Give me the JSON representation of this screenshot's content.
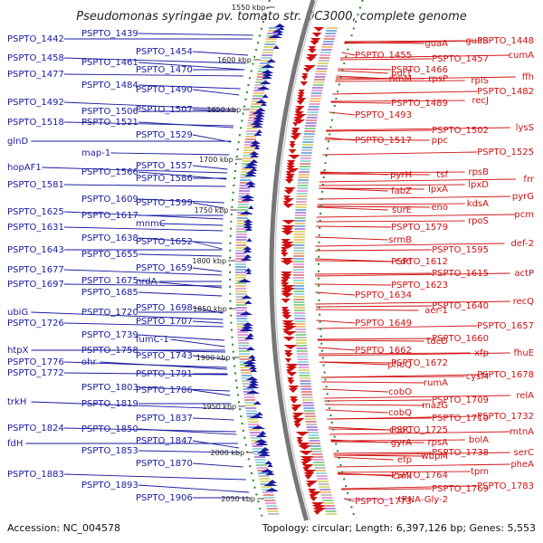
{
  "title": "Pseudomonas syringae pv. tomato str. DC3000, complete genome",
  "footer": {
    "accession": "Accession: NC_004578",
    "summary": "Topology: circular; Length: 6,397,126 bp; Genes: 5,553"
  },
  "colors": {
    "forward": "#1a1aa0",
    "reverse": "#d01010",
    "rna": "#e060c0",
    "backbone": "#777777",
    "ticks": "#228822"
  },
  "kbp_ticks": [
    "1550 kbp",
    "1600 kbp",
    "1650 kbp",
    "1700 kbp",
    "1750 kbp",
    "1800 kbp",
    "1850 kbp",
    "1900 kbp",
    "1950 kbp",
    "2000 kbp",
    "2050 kbp"
  ],
  "left_labels": [
    {
      "label": "PSPTO_1442",
      "row": 46
    },
    {
      "label": "PSPTO_1439",
      "row": 40
    },
    {
      "label": "PSPTO_1454",
      "row": 60
    },
    {
      "label": "PSPTO_1458",
      "row": 67
    },
    {
      "label": "PSPTO_1461",
      "row": 72
    },
    {
      "label": "PSPTO_1470",
      "row": 80
    },
    {
      "label": "PSPTO_1477",
      "row": 85
    },
    {
      "label": "PSPTO_1484",
      "row": 97
    },
    {
      "label": "PSPTO_1490",
      "row": 102
    },
    {
      "label": "PSPTO_1492",
      "row": 116
    },
    {
      "label": "PSPTO_1506",
      "row": 126
    },
    {
      "label": "PSPTO_1507",
      "row": 124
    },
    {
      "label": "PSPTO_1518",
      "row": 138
    },
    {
      "label": "PSPTO_1521",
      "row": 138
    },
    {
      "label": "PSPTO_1529",
      "row": 152
    },
    {
      "label": "glnD",
      "row": 159
    },
    {
      "label": "map-1",
      "row": 172
    },
    {
      "label": "PSPTO_1557",
      "row": 186
    },
    {
      "label": "hopAF1",
      "row": 188
    },
    {
      "label": "PSPTO_1566",
      "row": 193
    },
    {
      "label": "PSPTO_1586",
      "row": 200
    },
    {
      "label": "PSPTO_1581",
      "row": 207
    },
    {
      "label": "PSPTO_1609",
      "row": 223
    },
    {
      "label": "PSPTO_1599",
      "row": 227
    },
    {
      "label": "PSPTO_1625",
      "row": 237
    },
    {
      "label": "PSPTO_1617",
      "row": 241
    },
    {
      "label": "mnmC",
      "row": 250
    },
    {
      "label": "PSPTO_1631",
      "row": 254
    },
    {
      "label": "PSPTO_1638",
      "row": 266
    },
    {
      "label": "PSPTO_1652",
      "row": 270
    },
    {
      "label": "PSPTO_1643",
      "row": 279
    },
    {
      "label": "PSPTO_1655",
      "row": 284
    },
    {
      "label": "PSPTO_1659",
      "row": 299
    },
    {
      "label": "PSPTO_1677",
      "row": 301
    },
    {
      "label": "PSPTO_1675",
      "row": 313
    },
    {
      "label": "nrdA",
      "row": 314
    },
    {
      "label": "PSPTO_1697",
      "row": 317
    },
    {
      "label": "PSPTO_1685",
      "row": 326
    },
    {
      "label": "PSPTO_1698",
      "row": 343
    },
    {
      "label": "ubiG",
      "row": 348
    },
    {
      "label": "PSPTO_1720",
      "row": 348
    },
    {
      "label": "PSPTO_1707",
      "row": 358
    },
    {
      "label": "PSPTO_1726",
      "row": 360
    },
    {
      "label": "PSPTO_1739",
      "row": 373
    },
    {
      "label": "fumC-1",
      "row": 378
    },
    {
      "label": "htpX",
      "row": 390
    },
    {
      "label": "PSPTO_1758",
      "row": 390
    },
    {
      "label": "PSPTO_1743",
      "row": 396
    },
    {
      "label": "PSPTO_1776",
      "row": 403
    },
    {
      "label": "ohr",
      "row": 403
    },
    {
      "label": "PSPTO_1791",
      "row": 416
    },
    {
      "label": "PSPTO_1772",
      "row": 415
    },
    {
      "label": "PSPTO_1803",
      "row": 431
    },
    {
      "label": "PSPTO_1786",
      "row": 434
    },
    {
      "label": "trkH",
      "row": 447
    },
    {
      "label": "PSPTO_1819",
      "row": 449
    },
    {
      "label": "PSPTO_1837",
      "row": 465
    },
    {
      "label": "PSPTO_1824",
      "row": 476
    },
    {
      "label": "PSPTO_1850",
      "row": 477
    },
    {
      "label": "PSPTO_1847",
      "row": 490
    },
    {
      "label": "fdH",
      "row": 493
    },
    {
      "label": "PSPTO_1853",
      "row": 501
    },
    {
      "label": "PSPTO_1870",
      "row": 515
    },
    {
      "label": "PSPTO_1883",
      "row": 527
    },
    {
      "label": "PSPTO_1893",
      "row": 539
    },
    {
      "label": "PSPTO_1906",
      "row": 553
    }
  ],
  "right_labels": [
    {
      "label": "PSPTO_1448",
      "row": 48
    },
    {
      "label": "guaB",
      "row": 48
    },
    {
      "label": "guaA",
      "row": 51
    },
    {
      "label": "PSPTO_1455",
      "row": 64
    },
    {
      "label": "cumA",
      "row": 64
    },
    {
      "label": "PSPTO_1457",
      "row": 68
    },
    {
      "label": "PSPTO_1466",
      "row": 80
    },
    {
      "label": "purT",
      "row": 84
    },
    {
      "label": "ffh",
      "row": 88
    },
    {
      "label": "rplS",
      "row": 92
    },
    {
      "label": "rpsP",
      "row": 90
    },
    {
      "label": "rimM",
      "row": 90
    },
    {
      "label": "PSPTO_1482",
      "row": 104
    },
    {
      "label": "recJ",
      "row": 114
    },
    {
      "label": "PSPTO_1489",
      "row": 117
    },
    {
      "label": "PSPTO_1493",
      "row": 130
    },
    {
      "label": "lysS",
      "row": 144
    },
    {
      "label": "PSPTO_1502",
      "row": 147
    },
    {
      "label": "ppc",
      "row": 158
    },
    {
      "label": "PSPTO_1517",
      "row": 158
    },
    {
      "label": "PSPTO_1525",
      "row": 171
    },
    {
      "label": "rpsB",
      "row": 193
    },
    {
      "label": "tsf",
      "row": 196
    },
    {
      "label": "pyrH",
      "row": 196
    },
    {
      "label": "frr",
      "row": 201
    },
    {
      "label": "lpxD",
      "row": 207
    },
    {
      "label": "lpxA",
      "row": 212
    },
    {
      "label": "fabZ",
      "row": 214
    },
    {
      "label": "pyrG",
      "row": 220
    },
    {
      "label": "kdsA",
      "row": 228
    },
    {
      "label": "eno",
      "row": 232
    },
    {
      "label": "surE",
      "row": 235
    },
    {
      "label": "pcm",
      "row": 240
    },
    {
      "label": "rpoS",
      "row": 247
    },
    {
      "label": "PSPTO_1579",
      "row": 254
    },
    {
      "label": "srmB",
      "row": 268
    },
    {
      "label": "def-2",
      "row": 272
    },
    {
      "label": "PSPTO_1595",
      "row": 279
    },
    {
      "label": "PSPTO_1612",
      "row": 292
    },
    {
      "label": "cdd",
      "row": 292
    },
    {
      "label": "actP",
      "row": 305
    },
    {
      "label": "PSPTO_1615",
      "row": 305
    },
    {
      "label": "PSPTO_1623",
      "row": 318
    },
    {
      "label": "PSPTO_1634",
      "row": 329
    },
    {
      "label": "recQ",
      "row": 336
    },
    {
      "label": "PSPTO_1640",
      "row": 341
    },
    {
      "label": "aer-1",
      "row": 346
    },
    {
      "label": "PSPTO_1649",
      "row": 360
    },
    {
      "label": "PSPTO_1657",
      "row": 363
    },
    {
      "label": "PSPTO_1660",
      "row": 377
    },
    {
      "label": "tdcD",
      "row": 380
    },
    {
      "label": "PSPTO_1662",
      "row": 390
    },
    {
      "label": "fhuE",
      "row": 393
    },
    {
      "label": "xfp",
      "row": 393
    },
    {
      "label": "PSPTO_1672",
      "row": 404
    },
    {
      "label": "phoQ",
      "row": 406
    },
    {
      "label": "PSPTO_1678",
      "row": 417
    },
    {
      "label": "cysM",
      "row": 419
    },
    {
      "label": "rumA",
      "row": 426
    },
    {
      "label": "cobO",
      "row": 436
    },
    {
      "label": "relA",
      "row": 440
    },
    {
      "label": "PSPTO_1709",
      "row": 445
    },
    {
      "label": "mazG",
      "row": 451
    },
    {
      "label": "cobQ",
      "row": 459
    },
    {
      "label": "PSPTO_1732",
      "row": 463
    },
    {
      "label": "PSPTO_1710",
      "row": 465
    },
    {
      "label": "PSPTO_1725",
      "row": 478
    },
    {
      "label": "cobC",
      "row": 478
    },
    {
      "label": "mtnA",
      "row": 480
    },
    {
      "label": "bolA",
      "row": 489
    },
    {
      "label": "rpsA",
      "row": 492
    },
    {
      "label": "gyrA",
      "row": 492
    },
    {
      "label": "serC",
      "row": 503
    },
    {
      "label": "PSPTO_1738",
      "row": 503
    },
    {
      "label": "wbpM",
      "row": 507
    },
    {
      "label": "efp",
      "row": 511
    },
    {
      "label": "pheA",
      "row": 516
    },
    {
      "label": "tpm",
      "row": 524
    },
    {
      "label": "PSPTO_1764",
      "row": 528
    },
    {
      "label": "cmk",
      "row": 529
    },
    {
      "label": "PSPTO_1783",
      "row": 540
    },
    {
      "label": "PSPTO_1769",
      "row": 543
    },
    {
      "label": "tRNA-Gly-2",
      "row": 555
    },
    {
      "label": "PSPTO_1773",
      "row": 557
    }
  ]
}
